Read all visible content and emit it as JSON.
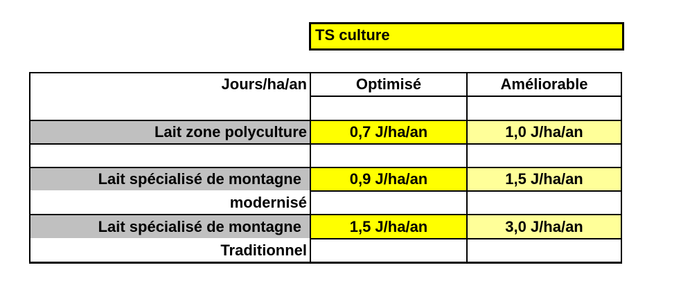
{
  "title": "TS culture",
  "table": {
    "header": {
      "label": "Jours/ha/an",
      "col1": "Optimisé",
      "col2": "Améliorable"
    },
    "rows": [
      {
        "label": "Lait zone polyculture",
        "optimise": "0,7 J/ha/an",
        "ameliorable": "1,0 J/ha/an"
      },
      {
        "label": "Lait spécialisé de montagne",
        "label_line2": "modernisé",
        "optimise": "0,9 J/ha/an",
        "ameliorable": "1,5 J/ha/an"
      },
      {
        "label": "Lait spécialisé de montagne",
        "label_line2": "Traditionnel",
        "optimise": "1,5 J/ha/an",
        "ameliorable": "3,0 J/ha/an"
      }
    ]
  },
  "colors": {
    "title_bg": "#ffff00",
    "label_highlight": "#c0c0c0",
    "optimise_bg": "#ffff00",
    "ameliorable_bg": "#ffff99",
    "border": "#000000"
  }
}
